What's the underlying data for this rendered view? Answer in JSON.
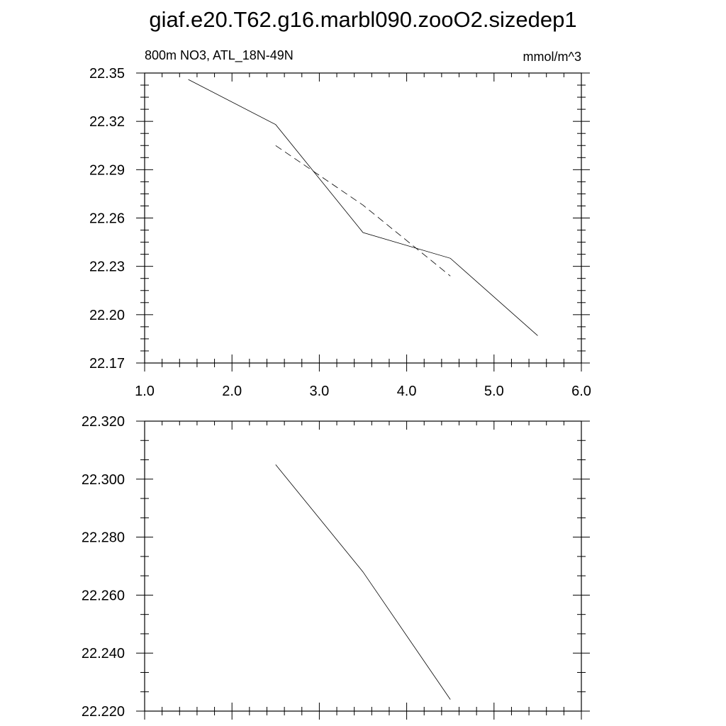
{
  "title": "giaf.e20.T62.g16.marbl090.zooO2.sizedep1",
  "chart_data": [
    {
      "type": "line",
      "left_label": "800m NO3, ATL_18N-49N",
      "right_label": "mmol/m^3",
      "xlim": [
        1.0,
        6.0
      ],
      "ylim": [
        22.17,
        22.35
      ],
      "x_ticks": [
        "1.0",
        "2.0",
        "3.0",
        "4.0",
        "5.0",
        "6.0"
      ],
      "y_ticks": [
        "22.17",
        "22.20",
        "22.23",
        "22.26",
        "22.29",
        "22.32",
        "22.35"
      ],
      "series": [
        {
          "style": "solid",
          "x": [
            1.5,
            2.5,
            3.5,
            4.5,
            5.5
          ],
          "y": [
            22.346,
            22.318,
            22.251,
            22.235,
            22.187
          ]
        },
        {
          "style": "dashed",
          "x": [
            2.5,
            3.5,
            4.5
          ],
          "y": [
            22.305,
            22.268,
            22.224
          ]
        }
      ]
    },
    {
      "type": "line",
      "xlim": [
        1.0,
        6.0
      ],
      "ylim": [
        22.22,
        22.32
      ],
      "y_ticks": [
        "22.220",
        "22.240",
        "22.260",
        "22.280",
        "22.300",
        "22.320"
      ],
      "series": [
        {
          "style": "solid",
          "x": [
            2.5,
            3.5,
            4.5
          ],
          "y": [
            22.305,
            22.268,
            22.224
          ]
        }
      ]
    }
  ]
}
